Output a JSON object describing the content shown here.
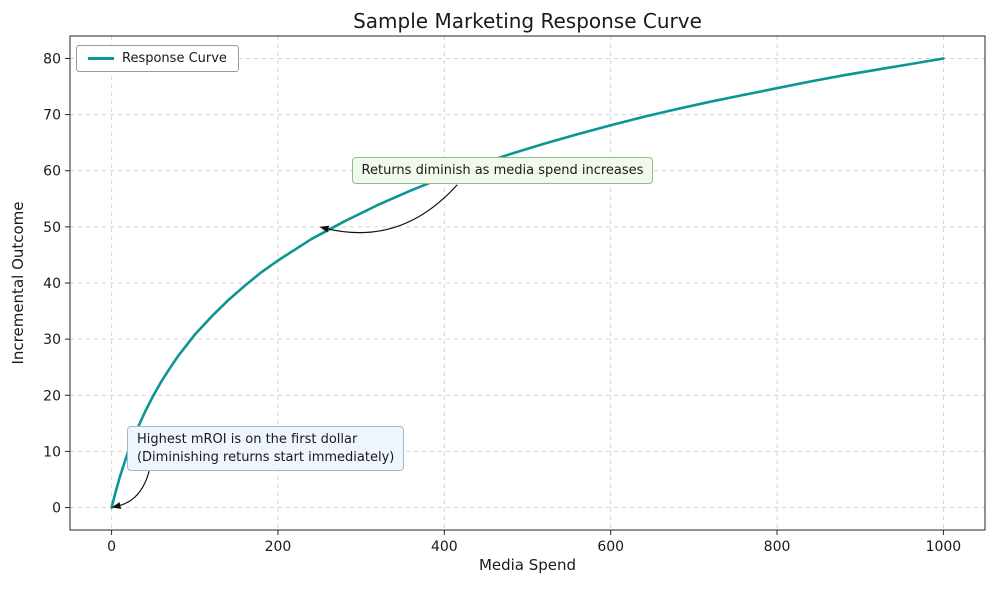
{
  "chart_data": {
    "type": "line",
    "title": "Sample Marketing Response Curve",
    "xlabel": "Media Spend",
    "ylabel": "Incremental Outcome",
    "legend": [
      "Response Curve"
    ],
    "legend_position": "upper left",
    "grid": true,
    "grid_style": "dashed",
    "xlim": [
      -50,
      1050
    ],
    "ylim": [
      -4,
      84
    ],
    "x_ticks": [
      0,
      200,
      400,
      600,
      800,
      1000
    ],
    "y_ticks": [
      0,
      10,
      20,
      30,
      40,
      50,
      60,
      70,
      80
    ],
    "line_color": "#0a9693",
    "series": [
      {
        "name": "Response Curve",
        "x": [
          0,
          2,
          5,
          10,
          20,
          30,
          40,
          50,
          60,
          70,
          80,
          90,
          100,
          120,
          140,
          160,
          180,
          200,
          240,
          280,
          320,
          360,
          400,
          440,
          480,
          520,
          560,
          600,
          640,
          680,
          720,
          760,
          800,
          840,
          880,
          920,
          960,
          1000
        ],
        "y": [
          0,
          1.2,
          2.9,
          5.5,
          10,
          13.7,
          17,
          19.9,
          22.5,
          24.8,
          27,
          28.9,
          30.8,
          34,
          36.9,
          39.5,
          41.9,
          44,
          47.8,
          51,
          53.9,
          56.5,
          58.9,
          61,
          63,
          64.8,
          66.5,
          68.1,
          69.6,
          71,
          72.3,
          73.5,
          74.7,
          75.9,
          77,
          78,
          79,
          80
        ]
      }
    ],
    "annotations": [
      {
        "text": "Returns diminish as media spend increases",
        "xy": [
          250,
          50
        ],
        "text_center": [
          470,
          60
        ],
        "fill": "#f1f9ec",
        "border": "#92bb8c"
      },
      {
        "text": "Highest mROI is on the first dollar\n(Diminishing returns start immediately)",
        "xy": [
          0,
          0
        ],
        "text_center": [
          185,
          10.5
        ],
        "fill": "#eef5fd",
        "border": "#a3b8cc"
      }
    ]
  }
}
